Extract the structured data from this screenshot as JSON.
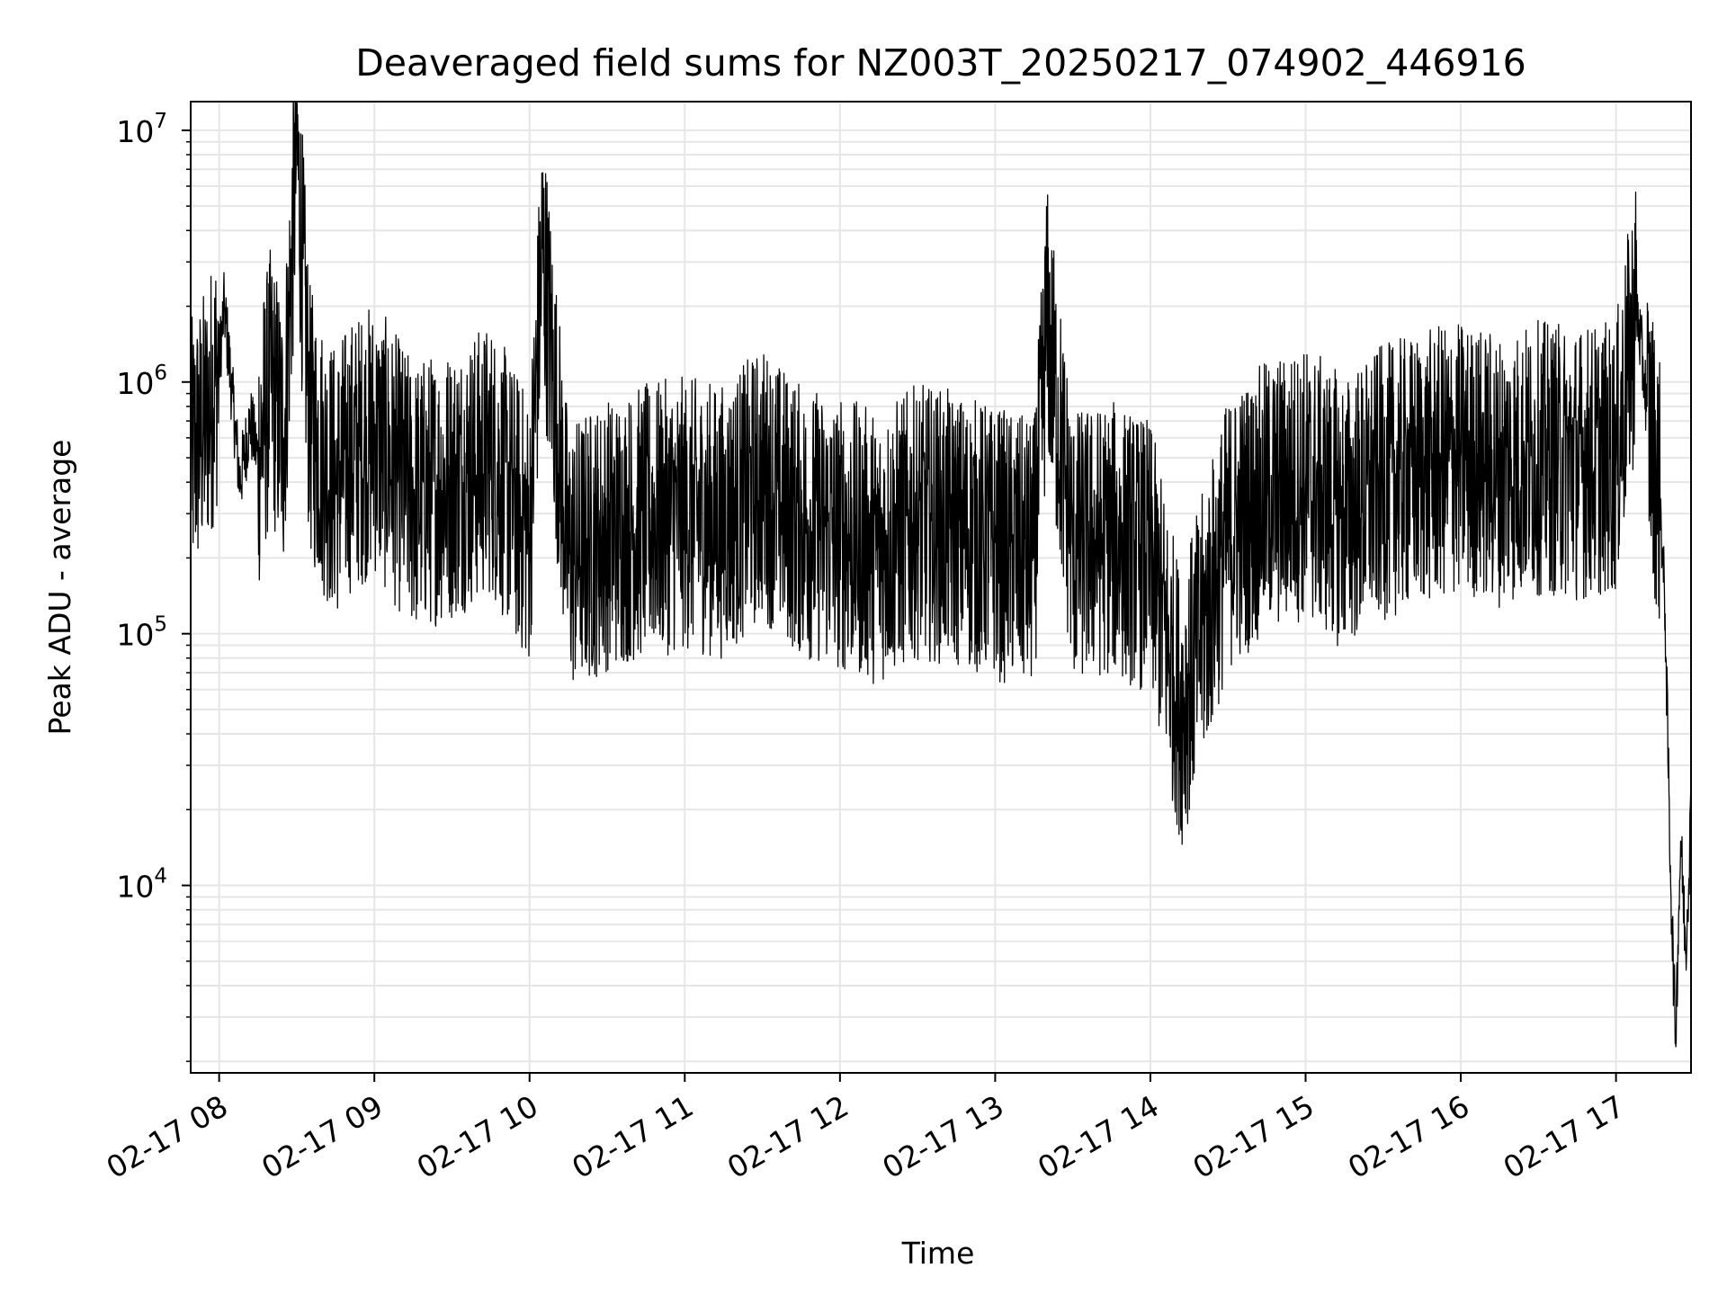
{
  "chart_data": {
    "type": "line",
    "title": "Deaveraged field sums for NZ003T_20250217_074902_446916",
    "xlabel": "Time",
    "ylabel": "Peak ADU - average",
    "yscale": "log",
    "ylim": [
      1800,
      13000000
    ],
    "xlim": [
      "2025-02-17 07:49",
      "2025-02-17 17:29"
    ],
    "grid": true,
    "line_color": "#000000",
    "grid_color": "#e6e6e6",
    "x_ticks": [
      "2025-02-17 08:00",
      "2025-02-17 09:00",
      "2025-02-17 10:00",
      "2025-02-17 11:00",
      "2025-02-17 12:00",
      "2025-02-17 13:00",
      "2025-02-17 14:00",
      "2025-02-17 15:00",
      "2025-02-17 16:00",
      "2025-02-17 17:00"
    ],
    "x_tick_labels": [
      "02-17 08",
      "02-17 09",
      "02-17 10",
      "02-17 11",
      "02-17 12",
      "02-17 13",
      "02-17 14",
      "02-17 15",
      "02-17 16",
      "02-17 17"
    ],
    "y_ticks": [
      10000,
      100000,
      1000000,
      10000000
    ],
    "y_tick_labels": [
      {
        "base": "10",
        "exp": "4"
      },
      {
        "base": "10",
        "exp": "5"
      },
      {
        "base": "10",
        "exp": "6"
      },
      {
        "base": "10",
        "exp": "7"
      }
    ],
    "series": [
      {
        "x": [
          "2025-02-17 07:49",
          "2025-02-17 07:55",
          "2025-02-17 08:00",
          "2025-02-17 08:02",
          "2025-02-17 08:05",
          "2025-02-17 08:08",
          "2025-02-17 08:12",
          "2025-02-17 08:15",
          "2025-02-17 08:20",
          "2025-02-17 08:25",
          "2025-02-17 08:30",
          "2025-02-17 08:35",
          "2025-02-17 08:40",
          "2025-02-17 08:45",
          "2025-02-17 08:50",
          "2025-02-17 09:00",
          "2025-02-17 09:15",
          "2025-02-17 09:30",
          "2025-02-17 09:45",
          "2025-02-17 10:00",
          "2025-02-17 10:05",
          "2025-02-17 10:15",
          "2025-02-17 10:30",
          "2025-02-17 10:45",
          "2025-02-17 11:00",
          "2025-02-17 11:15",
          "2025-02-17 11:30",
          "2025-02-17 11:45",
          "2025-02-17 12:00",
          "2025-02-17 12:15",
          "2025-02-17 12:30",
          "2025-02-17 12:45",
          "2025-02-17 13:00",
          "2025-02-17 13:15",
          "2025-02-17 13:20",
          "2025-02-17 13:30",
          "2025-02-17 13:45",
          "2025-02-17 14:00",
          "2025-02-17 14:12",
          "2025-02-17 14:30",
          "2025-02-17 14:45",
          "2025-02-17 15:00",
          "2025-02-17 15:15",
          "2025-02-17 15:30",
          "2025-02-17 15:45",
          "2025-02-17 16:00",
          "2025-02-17 16:15",
          "2025-02-17 16:30",
          "2025-02-17 16:45",
          "2025-02-17 17:00",
          "2025-02-17 17:08",
          "2025-02-17 17:12",
          "2025-02-17 17:17",
          "2025-02-17 17:19",
          "2025-02-17 17:21",
          "2025-02-17 17:23",
          "2025-02-17 17:25",
          "2025-02-17 17:27",
          "2025-02-17 17:29"
        ],
        "y": [
          500000,
          700000,
          1200000,
          2000000,
          900000,
          400000,
          700000,
          500000,
          1000000,
          600000,
          8800000,
          700000,
          500000,
          400000,
          500000,
          600000,
          350000,
          400000,
          500000,
          250000,
          3400000,
          200000,
          250000,
          280000,
          300000,
          280000,
          400000,
          280000,
          250000,
          220000,
          280000,
          260000,
          230000,
          200000,
          1750000,
          220000,
          240000,
          200000,
          50000,
          250000,
          350000,
          400000,
          300000,
          400000,
          450000,
          500000,
          450000,
          500000,
          480000,
          500000,
          2000000,
          800000,
          350000,
          120000,
          12000,
          2500,
          15000,
          5500,
          20000
        ]
      }
    ]
  }
}
